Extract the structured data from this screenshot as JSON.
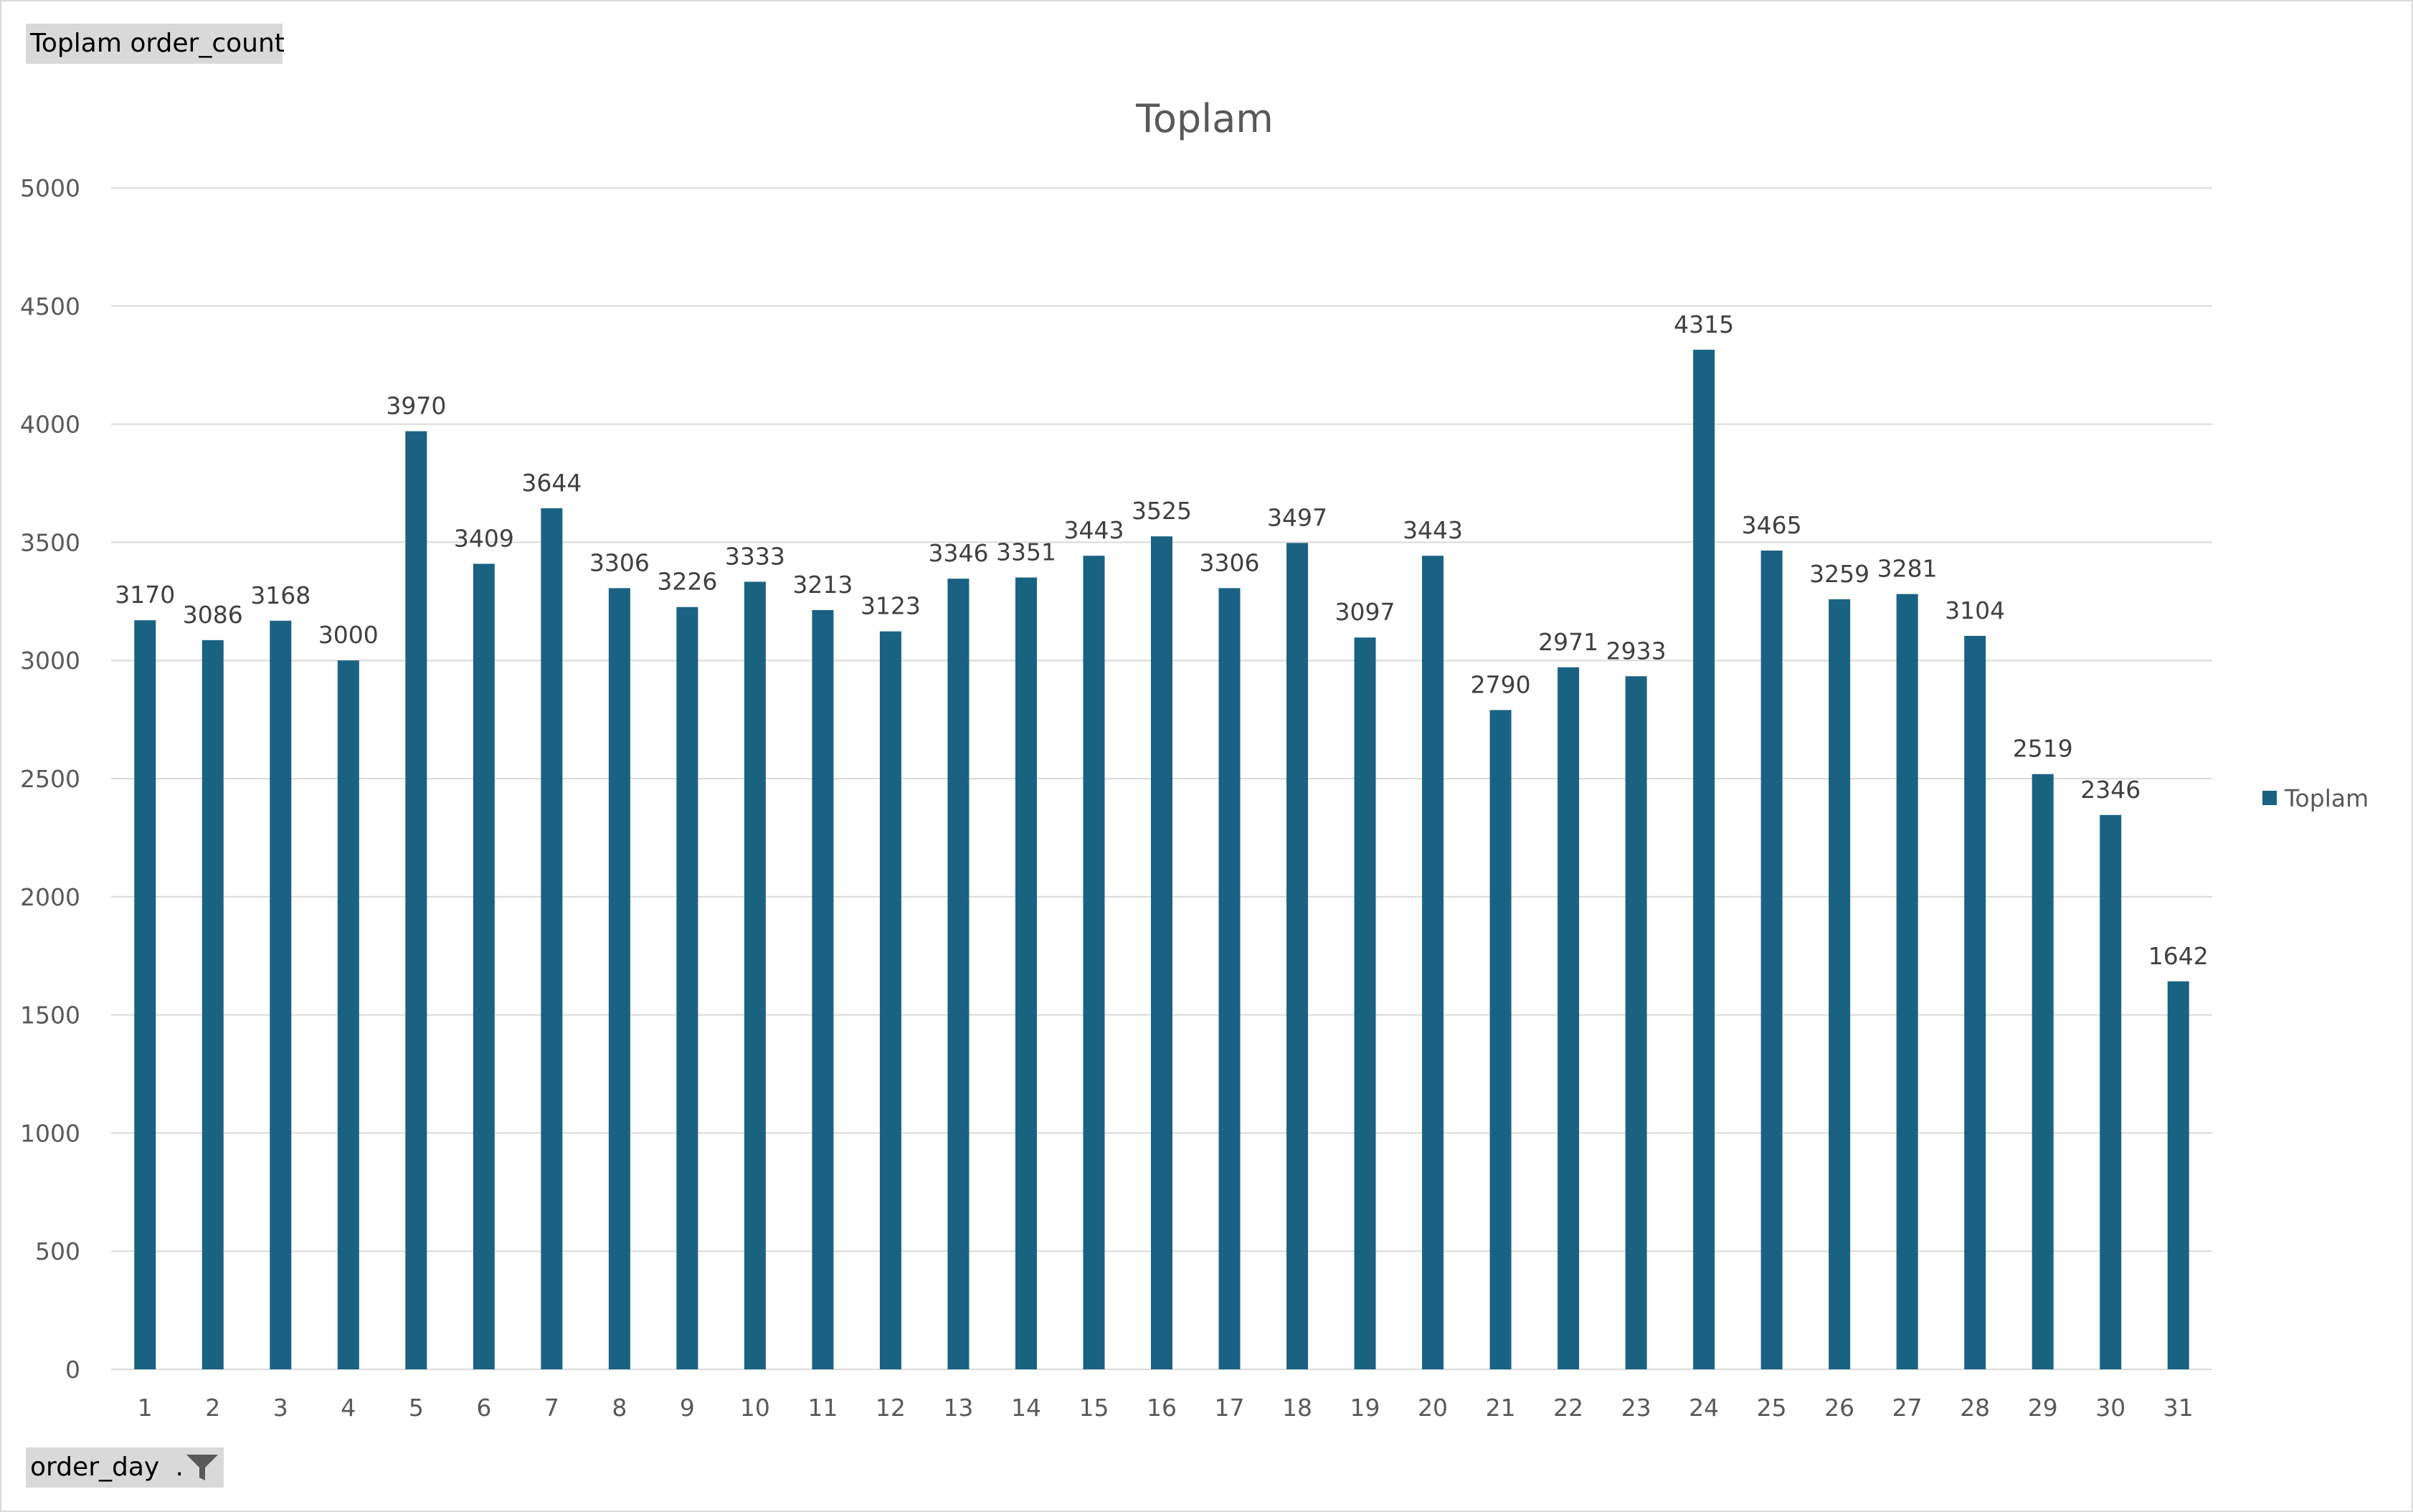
{
  "value_field_button": "Toplam order_count",
  "axis_field_button": "order_day",
  "axis_field_icon": "filter-icon",
  "colors": {
    "bar": "#1a6282",
    "grid": "#d9d9d9",
    "text": "#595959"
  },
  "chart_data": {
    "type": "bar",
    "title": "Toplam",
    "xlabel": "",
    "ylabel": "",
    "ylim": [
      0,
      5000
    ],
    "yticks": [
      0,
      500,
      1000,
      1500,
      2000,
      2500,
      3000,
      3500,
      4000,
      4500,
      5000
    ],
    "categories": [
      "1",
      "2",
      "3",
      "4",
      "5",
      "6",
      "7",
      "8",
      "9",
      "10",
      "11",
      "12",
      "13",
      "14",
      "15",
      "16",
      "17",
      "18",
      "19",
      "20",
      "21",
      "22",
      "23",
      "24",
      "25",
      "26",
      "27",
      "28",
      "29",
      "30",
      "31"
    ],
    "series": [
      {
        "name": "Toplam",
        "values": [
          3170,
          3086,
          3168,
          3000,
          3970,
          3409,
          3644,
          3306,
          3226,
          3333,
          3213,
          3123,
          3346,
          3351,
          3443,
          3525,
          3306,
          3497,
          3097,
          3443,
          2790,
          2971,
          2933,
          4315,
          3465,
          3259,
          3281,
          3104,
          2519,
          2346,
          1642
        ]
      }
    ],
    "grid": true,
    "legend": "right",
    "data_labels": true
  }
}
